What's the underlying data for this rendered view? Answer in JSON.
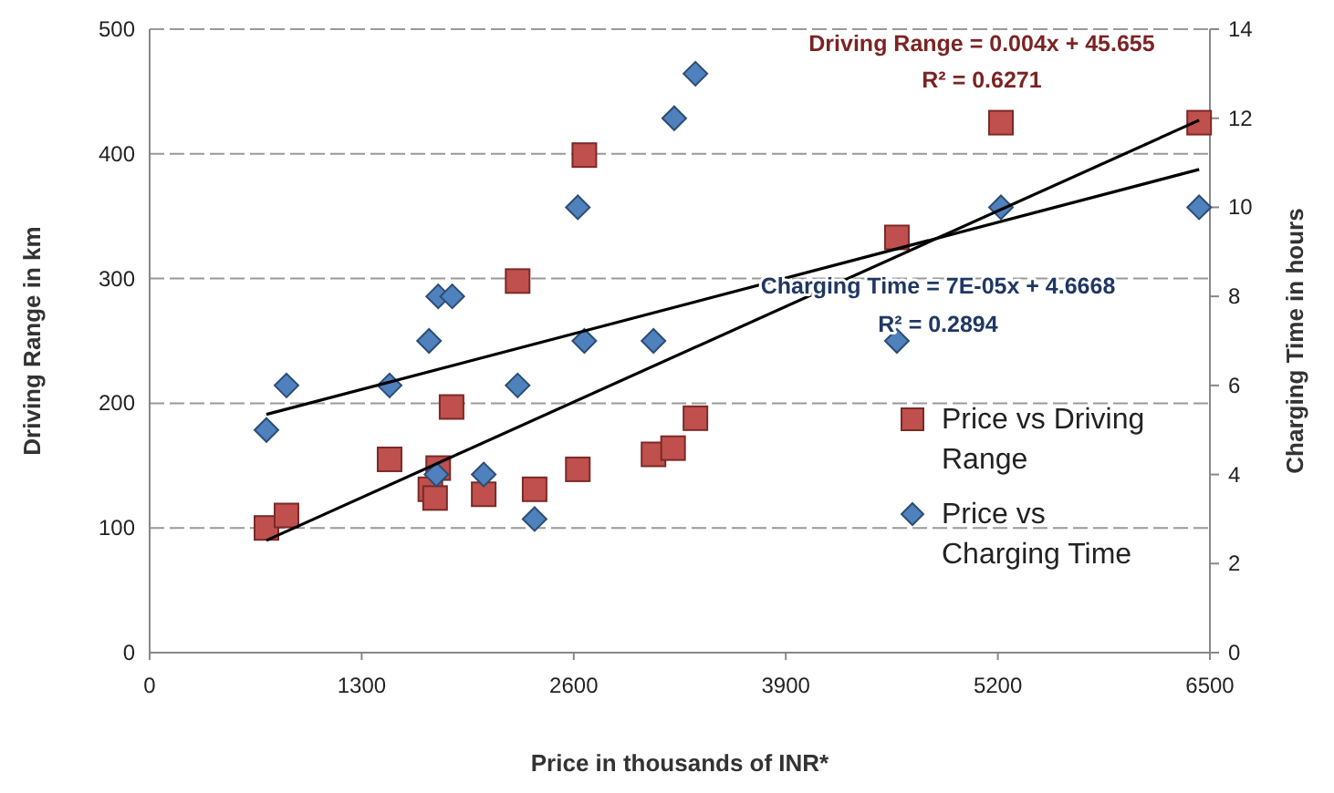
{
  "chart_data": {
    "type": "scatter",
    "xlabel": "Price in thousands of INR*",
    "ylabel": "Driving Range in km",
    "y2label": "Charging Time in hours",
    "xlim": [
      0,
      6500
    ],
    "xticks": [
      0,
      1300,
      2600,
      3900,
      5200,
      6500
    ],
    "ylim": [
      0,
      500
    ],
    "yticks": [
      0,
      100,
      200,
      300,
      400,
      500
    ],
    "y2lim": [
      0,
      14
    ],
    "y2ticks": [
      0,
      2,
      4,
      6,
      8,
      10,
      12,
      14
    ],
    "grid": "y",
    "legend": "right",
    "series": [
      {
        "name": "Price vs Driving Range",
        "color": "#c0504d",
        "marker": "square",
        "x": [
          716,
          839,
          1471,
          1769,
          1721,
          1750,
          1851,
          2048,
          2256,
          2360,
          2625,
          2665,
          3089,
          3209,
          3346,
          4581,
          5219,
          6434
        ],
        "values": [
          100,
          110,
          155,
          148,
          131,
          124,
          197,
          127,
          298,
          131,
          147,
          399,
          159,
          164,
          188,
          333,
          425,
          425
        ]
      },
      {
        "name": "Price vs Charging Time",
        "color": "#4f81bd",
        "marker": "diamond",
        "axis": "y2",
        "x": [
          716,
          839,
          1471,
          1713,
          1769,
          1855,
          1758,
          2048,
          2256,
          2360,
          2625,
          2665,
          3089,
          3216,
          3346,
          4581,
          5219,
          6434
        ],
        "values": [
          5,
          6,
          6,
          7,
          8,
          8,
          4,
          4,
          6,
          3,
          10,
          7,
          7,
          12,
          13,
          7,
          10,
          10
        ]
      },
      {
        "type": "line",
        "color": "#000000",
        "marker": "none",
        "x": [
          716,
          6434
        ],
        "values": [
          90,
          427
        ]
      },
      {
        "type": "line",
        "color": "#000000",
        "marker": "none",
        "axis": "y2",
        "x": [
          716,
          6434
        ],
        "values": [
          5.35,
          10.85
        ]
      }
    ],
    "annotations": [
      "Driving Range = 0.004x + 45.655",
      "R² = 0.6271",
      "Charging Time = 7E-05x + 4.6668",
      "R² = 0.2894"
    ]
  }
}
